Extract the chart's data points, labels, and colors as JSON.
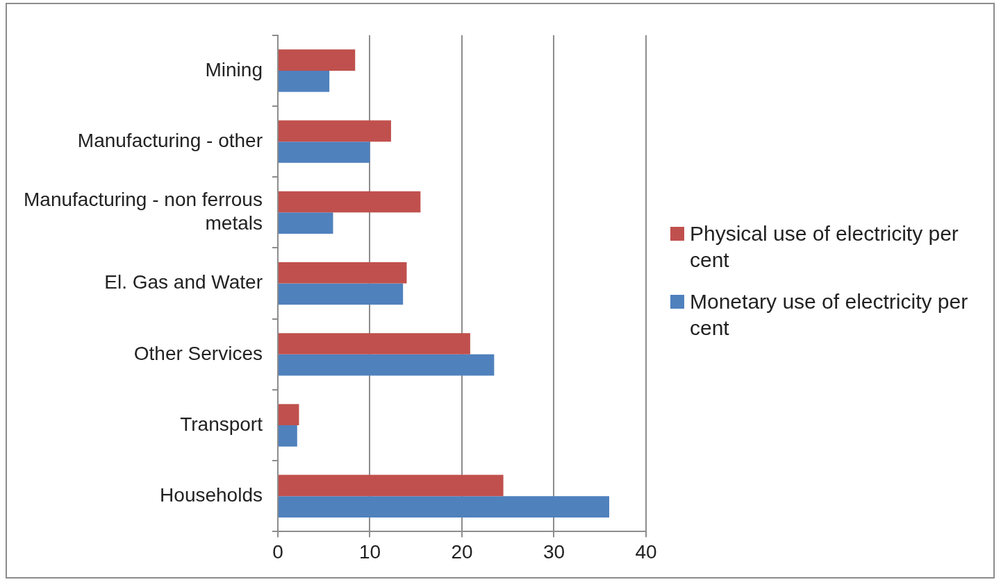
{
  "chart_data": {
    "type": "bar",
    "orientation": "horizontal",
    "categories": [
      "Mining",
      "Manufacturing - other",
      "Manufacturing - non ferrous metals",
      "El. Gas and Water",
      "Other Services",
      "Transport",
      "Households"
    ],
    "series": [
      {
        "name": "Physical use of electricity per cent",
        "color": "#c0504d",
        "values": [
          8.4,
          12.3,
          15.5,
          14.0,
          20.9,
          2.3,
          24.5
        ]
      },
      {
        "name": "Monetary use of electricity per cent",
        "color": "#4f81bd",
        "values": [
          5.6,
          10.0,
          6.0,
          13.6,
          23.5,
          2.1,
          36.0
        ]
      }
    ],
    "xlim": [
      0,
      40
    ],
    "xticks": [
      0,
      10,
      20,
      30,
      40
    ],
    "grid": "x",
    "legend": "right"
  }
}
